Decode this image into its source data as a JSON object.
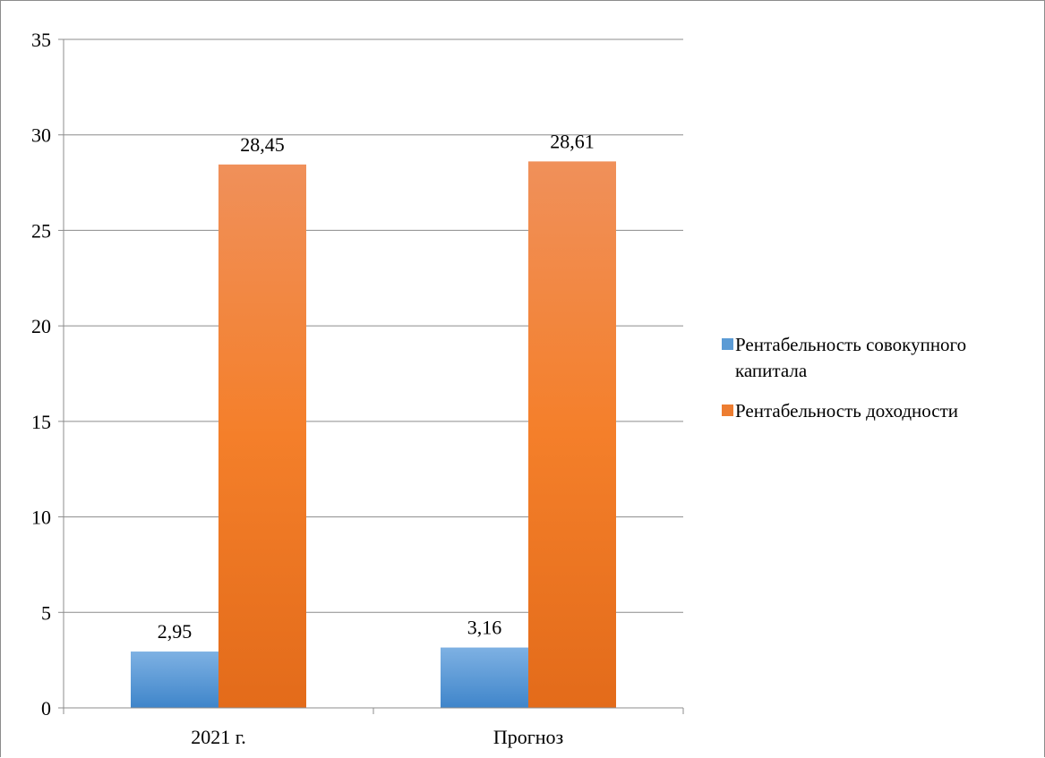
{
  "chart_data": {
    "type": "bar",
    "categories": [
      "2021 г.",
      "Прогноз"
    ],
    "series": [
      {
        "name": "Рентабельность совокупного капитала",
        "values": [
          2.95,
          3.16
        ],
        "labels": [
          "2,95",
          "3,16"
        ],
        "color": "#5b9bd5"
      },
      {
        "name": "Рентабельность доходности",
        "values": [
          28.45,
          28.61
        ],
        "labels": [
          "28,45",
          "28,61"
        ],
        "color": "#ed7d31"
      }
    ],
    "ylim": [
      0,
      35
    ],
    "yticks": [
      "0",
      "5",
      "10",
      "15",
      "20",
      "25",
      "30",
      "35"
    ],
    "grid": true,
    "legend_position": "right"
  }
}
